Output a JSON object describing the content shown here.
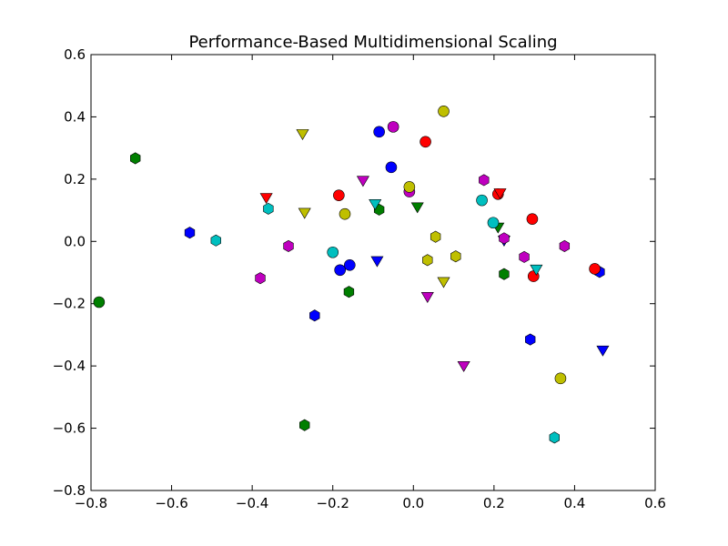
{
  "chart_data": {
    "type": "scatter",
    "title": "Performance-Based Multidimensional Scaling",
    "xlabel": "",
    "ylabel": "",
    "xlim": [
      -0.8,
      0.6
    ],
    "ylim": [
      -0.8,
      0.6
    ],
    "x_ticks": [
      "−0.8",
      "−0.6",
      "−0.4",
      "−0.2",
      "0.0",
      "0.2",
      "0.4",
      "0.6"
    ],
    "y_ticks": [
      "−0.8",
      "−0.6",
      "−0.4",
      "−0.2",
      "0.0",
      "0.2",
      "0.4",
      "0.6"
    ],
    "x_tick_values": [
      -0.8,
      -0.6,
      -0.4,
      -0.2,
      0.0,
      0.2,
      0.4,
      0.6
    ],
    "y_tick_values": [
      -0.8,
      -0.6,
      -0.4,
      -0.2,
      0.0,
      0.2,
      0.4,
      0.6
    ],
    "grid": false,
    "legend": "none",
    "colors": {
      "blue": "#0000ff",
      "green": "#007f00",
      "red": "#ff0000",
      "cyan": "#00bfbf",
      "magenta": "#bf00bf",
      "yellow": "#bfbf00"
    },
    "points": [
      {
        "x": -0.085,
        "y": 0.352,
        "marker": "circle",
        "color": "blue"
      },
      {
        "x": -0.055,
        "y": 0.238,
        "marker": "circle",
        "color": "blue"
      },
      {
        "x": -0.158,
        "y": -0.076,
        "marker": "circle",
        "color": "blue"
      },
      {
        "x": -0.182,
        "y": -0.092,
        "marker": "circle",
        "color": "blue"
      },
      {
        "x": -0.555,
        "y": 0.028,
        "marker": "hexagon",
        "color": "blue"
      },
      {
        "x": -0.245,
        "y": -0.238,
        "marker": "hexagon",
        "color": "blue"
      },
      {
        "x": 0.29,
        "y": -0.315,
        "marker": "hexagon",
        "color": "blue"
      },
      {
        "x": 0.462,
        "y": -0.098,
        "marker": "hexagon",
        "color": "blue"
      },
      {
        "x": -0.09,
        "y": -0.063,
        "marker": "triangle-down",
        "color": "blue"
      },
      {
        "x": 0.225,
        "y": 0.003,
        "marker": "triangle-down",
        "color": "blue"
      },
      {
        "x": 0.47,
        "y": -0.35,
        "marker": "triangle-down",
        "color": "blue"
      },
      {
        "x": -0.78,
        "y": -0.195,
        "marker": "circle",
        "color": "green"
      },
      {
        "x": -0.69,
        "y": 0.267,
        "marker": "hexagon",
        "color": "green"
      },
      {
        "x": -0.27,
        "y": -0.59,
        "marker": "hexagon",
        "color": "green"
      },
      {
        "x": -0.16,
        "y": -0.162,
        "marker": "hexagon",
        "color": "green"
      },
      {
        "x": -0.085,
        "y": 0.102,
        "marker": "hexagon",
        "color": "green"
      },
      {
        "x": 0.225,
        "y": -0.105,
        "marker": "hexagon",
        "color": "green"
      },
      {
        "x": 0.01,
        "y": 0.11,
        "marker": "triangle-down",
        "color": "green"
      },
      {
        "x": 0.21,
        "y": 0.045,
        "marker": "triangle-down",
        "color": "green"
      },
      {
        "x": 0.03,
        "y": 0.32,
        "marker": "circle",
        "color": "red"
      },
      {
        "x": -0.185,
        "y": 0.148,
        "marker": "circle",
        "color": "red"
      },
      {
        "x": 0.21,
        "y": 0.152,
        "marker": "circle",
        "color": "red"
      },
      {
        "x": 0.295,
        "y": 0.072,
        "marker": "circle",
        "color": "red"
      },
      {
        "x": 0.298,
        "y": -0.112,
        "marker": "circle",
        "color": "red"
      },
      {
        "x": 0.45,
        "y": -0.088,
        "marker": "circle",
        "color": "red"
      },
      {
        "x": -0.365,
        "y": 0.14,
        "marker": "triangle-down",
        "color": "red"
      },
      {
        "x": 0.215,
        "y": 0.155,
        "marker": "triangle-down",
        "color": "red"
      },
      {
        "x": -0.2,
        "y": -0.035,
        "marker": "circle",
        "color": "cyan"
      },
      {
        "x": 0.17,
        "y": 0.132,
        "marker": "circle",
        "color": "cyan"
      },
      {
        "x": 0.198,
        "y": 0.06,
        "marker": "circle",
        "color": "cyan"
      },
      {
        "x": -0.36,
        "y": 0.105,
        "marker": "hexagon",
        "color": "cyan"
      },
      {
        "x": -0.49,
        "y": 0.003,
        "marker": "hexagon",
        "color": "cyan"
      },
      {
        "x": 0.35,
        "y": -0.63,
        "marker": "hexagon",
        "color": "cyan"
      },
      {
        "x": -0.095,
        "y": 0.12,
        "marker": "triangle-down",
        "color": "cyan"
      },
      {
        "x": 0.305,
        "y": -0.09,
        "marker": "triangle-down",
        "color": "cyan"
      },
      {
        "x": -0.05,
        "y": 0.368,
        "marker": "circle",
        "color": "magenta"
      },
      {
        "x": -0.01,
        "y": 0.16,
        "marker": "circle",
        "color": "magenta"
      },
      {
        "x": -0.38,
        "y": -0.118,
        "marker": "hexagon",
        "color": "magenta"
      },
      {
        "x": -0.31,
        "y": -0.015,
        "marker": "hexagon",
        "color": "magenta"
      },
      {
        "x": 0.175,
        "y": 0.197,
        "marker": "hexagon",
        "color": "magenta"
      },
      {
        "x": 0.225,
        "y": 0.01,
        "marker": "hexagon",
        "color": "magenta"
      },
      {
        "x": 0.275,
        "y": -0.05,
        "marker": "hexagon",
        "color": "magenta"
      },
      {
        "x": 0.375,
        "y": -0.015,
        "marker": "hexagon",
        "color": "magenta"
      },
      {
        "x": -0.125,
        "y": 0.195,
        "marker": "triangle-down",
        "color": "magenta"
      },
      {
        "x": 0.035,
        "y": -0.178,
        "marker": "triangle-down",
        "color": "magenta"
      },
      {
        "x": 0.125,
        "y": -0.4,
        "marker": "triangle-down",
        "color": "magenta"
      },
      {
        "x": 0.075,
        "y": 0.418,
        "marker": "circle",
        "color": "yellow"
      },
      {
        "x": -0.01,
        "y": 0.175,
        "marker": "circle",
        "color": "yellow"
      },
      {
        "x": -0.17,
        "y": 0.088,
        "marker": "circle",
        "color": "yellow"
      },
      {
        "x": 0.365,
        "y": -0.44,
        "marker": "circle",
        "color": "yellow"
      },
      {
        "x": 0.055,
        "y": 0.015,
        "marker": "hexagon",
        "color": "yellow"
      },
      {
        "x": 0.035,
        "y": -0.06,
        "marker": "hexagon",
        "color": "yellow"
      },
      {
        "x": 0.105,
        "y": -0.048,
        "marker": "hexagon",
        "color": "yellow"
      },
      {
        "x": -0.275,
        "y": 0.345,
        "marker": "triangle-down",
        "color": "yellow"
      },
      {
        "x": -0.27,
        "y": 0.092,
        "marker": "triangle-down",
        "color": "yellow"
      },
      {
        "x": 0.075,
        "y": -0.13,
        "marker": "triangle-down",
        "color": "yellow"
      }
    ]
  }
}
